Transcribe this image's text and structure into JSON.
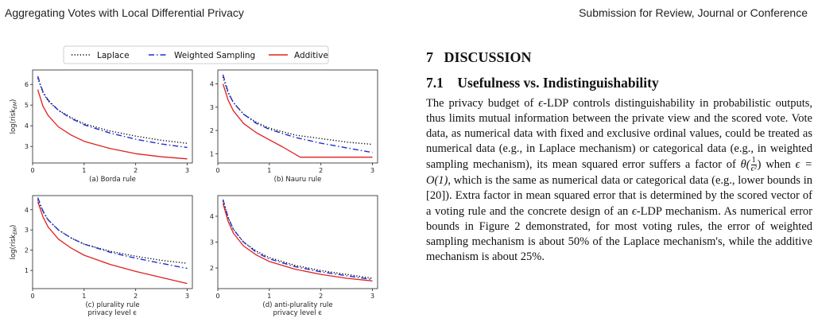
{
  "header": {
    "left": "Aggregating Votes with Local Differential Privacy",
    "right": "Submission for Review, Journal or Conference"
  },
  "section": {
    "number": "7",
    "title": "DISCUSSION"
  },
  "subsection": {
    "number": "7.1",
    "title": "Usefulness vs. Indistinguishability"
  },
  "body": {
    "seg1": "The privacy budget of ",
    "eps1": "ϵ",
    "seg2": "-LDP controls distinguishability in probabilistic outputs, thus limits mutual information between the private view and the scored vote. Vote data, as numerical data with fixed and exclusive ordinal values, could be treated as numerical data (e.g., in Laplace mechanism) or categorical data (e.g., in weighted sampling mechanism), its mean squared error suffers a factor of ",
    "theta": "θ(",
    "frac_num": "1",
    "frac_den": "ϵ²",
    "theta_close": ")",
    "seg3": " when ",
    "cond": "ϵ = O(1)",
    "seg4": ", which is the same as numerical data or categorical data (e.g., lower bounds in [20]). Extra factor in mean squared error that is determined by the scored vector of a voting rule and the concrete design of an ",
    "eps2": "ϵ",
    "seg5": "-LDP mechanism. As numerical error bounds in Figure 2 demonstrated, for most voting rules, the error of weighted sampling mechanism is about 50% of the Laplace mechanism's, while the additive mechanism is about 25%."
  },
  "chart_data": {
    "legend": {
      "placement": "top",
      "entries": [
        {
          "name": "Laplace",
          "color": "#000000",
          "dash": "dotted"
        },
        {
          "name": "Weighted Sampling",
          "color": "#1f2fd0",
          "dash": "dashdot"
        },
        {
          "name": "Additive",
          "color": "#e02020",
          "dash": "solid"
        }
      ]
    },
    "shared_xlabel": "privacy level ϵ",
    "panels": [
      {
        "type": "line",
        "caption": "(a) Borda rule",
        "ylabel": "log(risk_EM)",
        "xlim": [
          0,
          3.1
        ],
        "ylim": [
          2.2,
          6.7
        ],
        "xticks": [
          0,
          1,
          2,
          3
        ],
        "yticks": [
          3,
          4,
          5,
          6
        ],
        "series": [
          {
            "name": "Laplace",
            "x": [
              0.1,
              0.2,
              0.3,
              0.5,
              0.75,
              1.0,
              1.5,
              2.0,
              2.5,
              3.0
            ],
            "y": [
              6.3,
              5.6,
              5.2,
              4.75,
              4.4,
              4.1,
              3.75,
              3.5,
              3.3,
              3.15
            ]
          },
          {
            "name": "Weighted Sampling",
            "x": [
              0.1,
              0.2,
              0.3,
              0.5,
              0.75,
              1.0,
              1.5,
              2.0,
              2.5,
              3.0
            ],
            "y": [
              6.4,
              5.65,
              5.25,
              4.75,
              4.35,
              4.05,
              3.65,
              3.35,
              3.12,
              2.95
            ]
          },
          {
            "name": "Additive",
            "x": [
              0.1,
              0.2,
              0.3,
              0.5,
              0.75,
              1.0,
              1.5,
              2.0,
              2.5,
              3.0
            ],
            "y": [
              5.75,
              4.95,
              4.5,
              3.95,
              3.55,
              3.25,
              2.9,
              2.65,
              2.5,
              2.4
            ]
          }
        ]
      },
      {
        "type": "line",
        "caption": "(b) Nauru rule",
        "ylabel": "",
        "xlim": [
          0,
          3.1
        ],
        "ylim": [
          0.6,
          4.6
        ],
        "xticks": [
          0,
          1,
          2,
          3
        ],
        "yticks": [
          1,
          2,
          3,
          4
        ],
        "series": [
          {
            "name": "Laplace",
            "x": [
              0.1,
              0.2,
              0.3,
              0.5,
              0.75,
              1.0,
              1.5,
              2.0,
              2.5,
              3.0
            ],
            "y": [
              4.3,
              3.6,
              3.2,
              2.7,
              2.35,
              2.1,
              1.8,
              1.65,
              1.5,
              1.4
            ]
          },
          {
            "name": "Weighted Sampling",
            "x": [
              0.1,
              0.2,
              0.3,
              0.5,
              0.75,
              1.0,
              1.5,
              2.0,
              2.5,
              3.0
            ],
            "y": [
              4.4,
              3.65,
              3.2,
              2.7,
              2.3,
              2.05,
              1.7,
              1.45,
              1.25,
              1.05
            ]
          },
          {
            "name": "Additive",
            "x": [
              0.1,
              0.2,
              0.3,
              0.5,
              0.75,
              1.0,
              1.25,
              1.6,
              2.0,
              2.5,
              3.0
            ],
            "y": [
              4.0,
              3.3,
              2.85,
              2.3,
              1.9,
              1.6,
              1.3,
              0.85,
              0.85,
              0.85,
              0.85
            ]
          }
        ]
      },
      {
        "type": "line",
        "caption": "(c) plurality rule",
        "ylabel": "log(risk_EM)",
        "xlim": [
          0,
          3.1
        ],
        "ylim": [
          0.1,
          4.7
        ],
        "xticks": [
          0,
          1,
          2,
          3
        ],
        "yticks": [
          1,
          2,
          3,
          4
        ],
        "series": [
          {
            "name": "Laplace",
            "x": [
              0.1,
              0.2,
              0.3,
              0.5,
              0.75,
              1.0,
              1.5,
              2.0,
              2.5,
              3.0
            ],
            "y": [
              4.5,
              3.9,
              3.5,
              3.0,
              2.6,
              2.3,
              1.95,
              1.7,
              1.5,
              1.35
            ]
          },
          {
            "name": "Weighted Sampling",
            "x": [
              0.1,
              0.2,
              0.3,
              0.5,
              0.75,
              1.0,
              1.5,
              2.0,
              2.5,
              3.0
            ],
            "y": [
              4.6,
              3.95,
              3.5,
              3.0,
              2.6,
              2.3,
              1.9,
              1.6,
              1.35,
              1.1
            ]
          },
          {
            "name": "Additive",
            "x": [
              0.1,
              0.2,
              0.3,
              0.5,
              0.75,
              1.0,
              1.5,
              2.0,
              2.5,
              3.0
            ],
            "y": [
              4.4,
              3.65,
              3.15,
              2.55,
              2.1,
              1.75,
              1.3,
              0.95,
              0.65,
              0.35
            ]
          }
        ]
      },
      {
        "type": "line",
        "caption": "(d) anti-plurality rule",
        "ylabel": "",
        "xlim": [
          0,
          3.1
        ],
        "ylim": [
          1.2,
          4.8
        ],
        "xticks": [
          0,
          1,
          2,
          3
        ],
        "yticks": [
          2,
          3,
          4
        ],
        "series": [
          {
            "name": "Laplace",
            "x": [
              0.1,
              0.2,
              0.3,
              0.5,
              0.75,
              1.0,
              1.5,
              2.0,
              2.5,
              3.0
            ],
            "y": [
              4.6,
              3.95,
              3.5,
              3.0,
              2.65,
              2.4,
              2.1,
              1.9,
              1.75,
              1.6
            ]
          },
          {
            "name": "Weighted Sampling",
            "x": [
              0.1,
              0.2,
              0.3,
              0.5,
              0.75,
              1.0,
              1.5,
              2.0,
              2.5,
              3.0
            ],
            "y": [
              4.65,
              3.95,
              3.5,
              3.0,
              2.6,
              2.35,
              2.05,
              1.85,
              1.7,
              1.55
            ]
          },
          {
            "name": "Additive",
            "x": [
              0.1,
              0.2,
              0.3,
              0.5,
              0.75,
              1.0,
              1.5,
              2.0,
              2.5,
              3.0
            ],
            "y": [
              4.5,
              3.8,
              3.35,
              2.85,
              2.5,
              2.25,
              1.95,
              1.75,
              1.6,
              1.5
            ]
          }
        ]
      }
    ]
  }
}
